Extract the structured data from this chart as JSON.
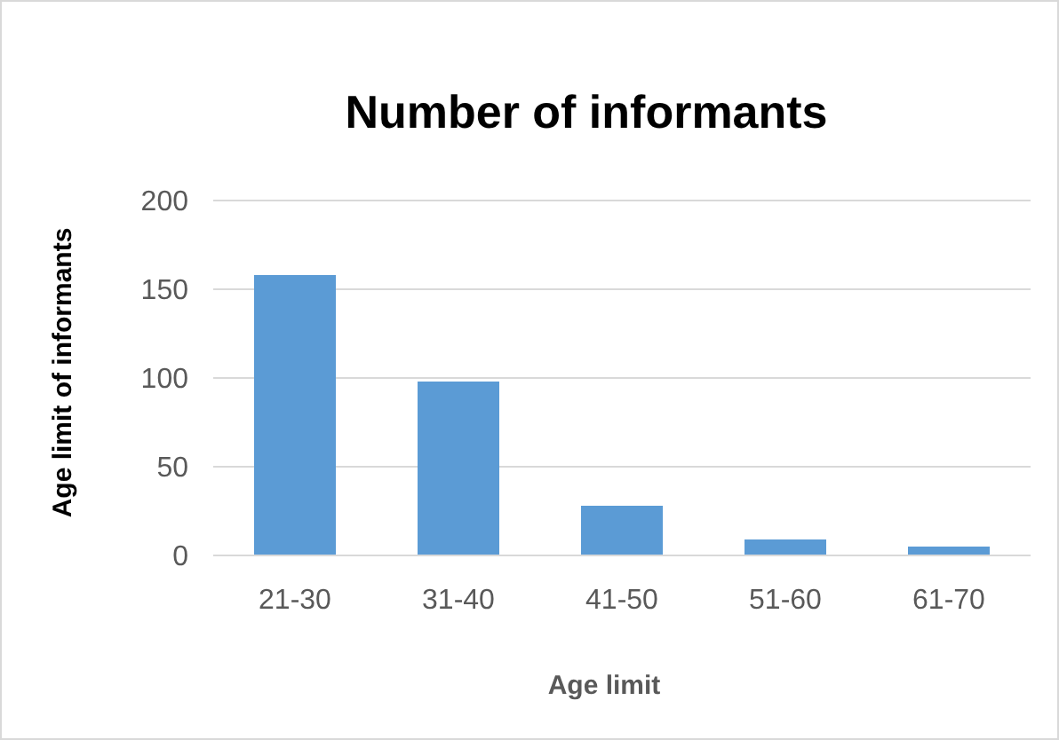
{
  "chart_data": {
    "type": "bar",
    "title": "Number of informants",
    "xlabel": "Age limit",
    "ylabel": "Age limit of informants",
    "categories": [
      "21-30",
      "31-40",
      "41-50",
      "51-60",
      "61-70"
    ],
    "values": [
      158,
      98,
      28,
      9,
      5
    ],
    "color": "#5b9bd5",
    "ylim": [
      0,
      200
    ],
    "yticks": [
      0,
      50,
      100,
      150,
      200
    ],
    "grid": "y"
  }
}
